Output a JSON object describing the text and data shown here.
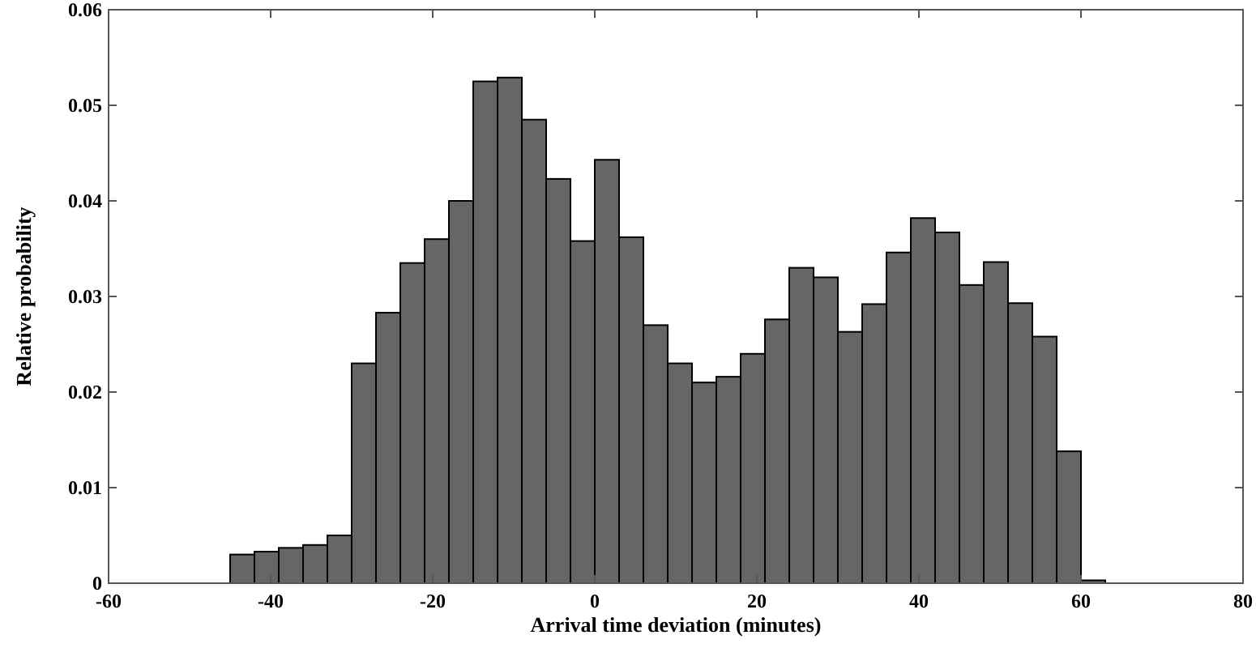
{
  "chart_data": {
    "type": "histogram",
    "xlabel": "Arrival time deviation (minutes)",
    "ylabel": "Relative probability",
    "color": "#666666",
    "bins": [
      -45,
      -42,
      -39,
      -36,
      -33,
      -30,
      -27,
      -24,
      -21,
      -18,
      -15,
      -12,
      -9,
      -6,
      -3,
      0,
      3,
      6,
      9,
      12,
      15,
      18,
      21,
      24,
      27,
      30,
      33,
      36,
      39,
      42,
      45,
      48,
      51,
      54,
      57,
      60,
      63
    ],
    "values": [
      0.003,
      0.0033,
      0.0037,
      0.004,
      0.005,
      0.023,
      0.0283,
      0.0335,
      0.036,
      0.04,
      0.0525,
      0.0529,
      0.0485,
      0.0423,
      0.0358,
      0.0443,
      0.0362,
      0.027,
      0.023,
      0.021,
      0.0216,
      0.024,
      0.0276,
      0.033,
      0.032,
      0.0263,
      0.0292,
      0.0346,
      0.0382,
      0.0367,
      0.0312,
      0.0336,
      0.0293,
      0.0258,
      0.0138,
      0.0003
    ],
    "xlim": [
      -60,
      80
    ],
    "xticks": [
      -60,
      -40,
      -20,
      0,
      20,
      40,
      60,
      80
    ],
    "ylim": [
      0,
      0.06
    ],
    "yticks": [
      0,
      0.01,
      0.02,
      0.03,
      0.04,
      0.05,
      0.06
    ]
  }
}
